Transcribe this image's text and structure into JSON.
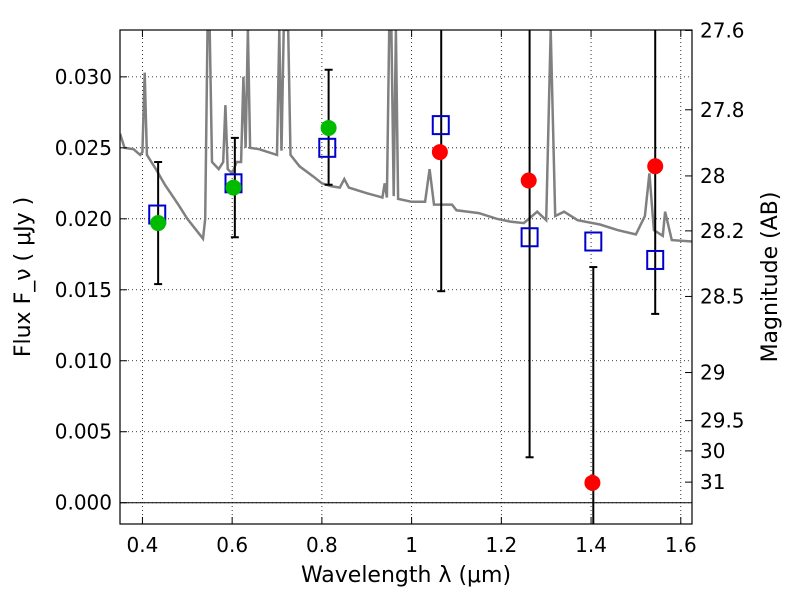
{
  "chart_data": {
    "type": "scatter",
    "title": "",
    "xlabel": "Wavelength  λ (μm)",
    "ylabel": "Flux  F_ν  ( μJy )",
    "ylabel_right": "Magnitude (AB)",
    "xlim": [
      0.35,
      1.625
    ],
    "ylim": [
      -0.0015,
      0.0333
    ],
    "grid": true,
    "x_ticks": [
      0.4,
      0.6,
      0.8,
      1.0,
      1.2,
      1.4,
      1.6
    ],
    "x_tick_labels": [
      "0.4",
      "0.6",
      "0.8",
      "1",
      "1.2",
      "1.4",
      "1.6"
    ],
    "y_ticks": [
      0.0,
      0.005,
      0.01,
      0.015,
      0.02,
      0.025,
      0.03
    ],
    "y_tick_labels": [
      "0.000",
      "0.005",
      "0.010",
      "0.015",
      "0.020",
      "0.025",
      "0.030"
    ],
    "right_ticks": [
      {
        "label": "27.6",
        "flux": 0.03327
      },
      {
        "label": "27.8",
        "flux": 0.02768
      },
      {
        "label": "28",
        "flux": 0.02302
      },
      {
        "label": "28.2",
        "flux": 0.01915
      },
      {
        "label": "28.5",
        "flux": 0.01453
      },
      {
        "label": "29",
        "flux": 0.00917
      },
      {
        "label": "29.5",
        "flux": 0.00578
      },
      {
        "label": "30",
        "flux": 0.00365
      },
      {
        "label": "31",
        "flux": 0.00145
      }
    ],
    "colors": {
      "model_line": "#808080",
      "green_points": "#00bb00",
      "red_points": "#ff0000",
      "squares": "#0000cc",
      "error_bars": "#000000",
      "zero_line": "#000000"
    },
    "series": [
      {
        "marker": "circle-green",
        "points": [
          {
            "x": 0.435,
            "y": 0.0197
          },
          {
            "x": 0.603,
            "y": 0.0222
          },
          {
            "x": 0.815,
            "y": 0.0264
          }
        ]
      },
      {
        "marker": "circle-red",
        "points": [
          {
            "x": 1.063,
            "y": 0.0247
          },
          {
            "x": 1.261,
            "y": 0.0227
          },
          {
            "x": 1.403,
            "y": 0.0014
          },
          {
            "x": 1.543,
            "y": 0.0237
          }
        ]
      },
      {
        "marker": "errorbar",
        "points": [
          {
            "x": 0.435,
            "lo": 0.0154,
            "hi": 0.024
          },
          {
            "x": 0.606,
            "lo": 0.0187,
            "hi": 0.0257
          },
          {
            "x": 0.815,
            "lo": 0.0224,
            "hi": 0.0305
          },
          {
            "x": 1.066,
            "lo": 0.0149,
            "hi": 0.0333
          },
          {
            "x": 1.263,
            "lo": 0.0032,
            "hi": 0.0333
          },
          {
            "x": 1.405,
            "lo": -0.0015,
            "hi": 0.0166
          },
          {
            "x": 1.543,
            "lo": 0.0133,
            "hi": 0.0333
          }
        ]
      },
      {
        "marker": "square-open",
        "points": [
          {
            "x": 0.433,
            "y": 0.0203
          },
          {
            "x": 0.603,
            "y": 0.0225
          },
          {
            "x": 0.812,
            "y": 0.025
          },
          {
            "x": 1.065,
            "y": 0.0266
          },
          {
            "x": 1.263,
            "y": 0.0187
          },
          {
            "x": 1.405,
            "y": 0.0184
          },
          {
            "x": 1.543,
            "y": 0.0171
          }
        ]
      },
      {
        "marker": "line-model",
        "points": [
          {
            "x": 0.35,
            "y": 0.026
          },
          {
            "x": 0.36,
            "y": 0.025
          },
          {
            "x": 0.38,
            "y": 0.0249
          },
          {
            "x": 0.395,
            "y": 0.0245
          },
          {
            "x": 0.4,
            "y": 0.0247
          },
          {
            "x": 0.405,
            "y": 0.0303
          },
          {
            "x": 0.41,
            "y": 0.0245
          },
          {
            "x": 0.43,
            "y": 0.0235
          },
          {
            "x": 0.45,
            "y": 0.0224
          },
          {
            "x": 0.48,
            "y": 0.021
          },
          {
            "x": 0.5,
            "y": 0.02
          },
          {
            "x": 0.52,
            "y": 0.0192
          },
          {
            "x": 0.535,
            "y": 0.0186
          },
          {
            "x": 0.54,
            "y": 0.02
          },
          {
            "x": 0.545,
            "y": 0.0333
          },
          {
            "x": 0.55,
            "y": 0.0333
          },
          {
            "x": 0.555,
            "y": 0.024
          },
          {
            "x": 0.57,
            "y": 0.0235
          },
          {
            "x": 0.58,
            "y": 0.024
          },
          {
            "x": 0.585,
            "y": 0.028
          },
          {
            "x": 0.59,
            "y": 0.0235
          },
          {
            "x": 0.6,
            "y": 0.0232
          },
          {
            "x": 0.61,
            "y": 0.024
          },
          {
            "x": 0.62,
            "y": 0.024
          },
          {
            "x": 0.625,
            "y": 0.03
          },
          {
            "x": 0.63,
            "y": 0.025
          },
          {
            "x": 0.635,
            "y": 0.0333
          },
          {
            "x": 0.64,
            "y": 0.025
          },
          {
            "x": 0.66,
            "y": 0.0249
          },
          {
            "x": 0.7,
            "y": 0.0245
          },
          {
            "x": 0.705,
            "y": 0.0333
          },
          {
            "x": 0.71,
            "y": 0.0248
          },
          {
            "x": 0.715,
            "y": 0.0333
          },
          {
            "x": 0.72,
            "y": 0.0333
          },
          {
            "x": 0.725,
            "y": 0.0333
          },
          {
            "x": 0.73,
            "y": 0.0245
          },
          {
            "x": 0.75,
            "y": 0.0237
          },
          {
            "x": 0.78,
            "y": 0.023
          },
          {
            "x": 0.8,
            "y": 0.0225
          },
          {
            "x": 0.82,
            "y": 0.0223
          },
          {
            "x": 0.84,
            "y": 0.0222
          },
          {
            "x": 0.85,
            "y": 0.0228
          },
          {
            "x": 0.86,
            "y": 0.0222
          },
          {
            "x": 0.9,
            "y": 0.0218
          },
          {
            "x": 0.935,
            "y": 0.0215
          },
          {
            "x": 0.94,
            "y": 0.0225
          },
          {
            "x": 0.945,
            "y": 0.0215
          },
          {
            "x": 0.95,
            "y": 0.0333
          },
          {
            "x": 0.955,
            "y": 0.0333
          },
          {
            "x": 0.96,
            "y": 0.0216
          },
          {
            "x": 0.965,
            "y": 0.0333
          },
          {
            "x": 0.97,
            "y": 0.0214
          },
          {
            "x": 1.0,
            "y": 0.0212
          },
          {
            "x": 1.03,
            "y": 0.0212
          },
          {
            "x": 1.04,
            "y": 0.0235
          },
          {
            "x": 1.05,
            "y": 0.021
          },
          {
            "x": 1.09,
            "y": 0.021
          },
          {
            "x": 1.1,
            "y": 0.0206
          },
          {
            "x": 1.15,
            "y": 0.0204
          },
          {
            "x": 1.19,
            "y": 0.02
          },
          {
            "x": 1.22,
            "y": 0.0198
          },
          {
            "x": 1.25,
            "y": 0.0197
          },
          {
            "x": 1.28,
            "y": 0.0205
          },
          {
            "x": 1.3,
            "y": 0.0199
          },
          {
            "x": 1.31,
            "y": 0.0333
          },
          {
            "x": 1.32,
            "y": 0.0202
          },
          {
            "x": 1.34,
            "y": 0.0205
          },
          {
            "x": 1.37,
            "y": 0.0199
          },
          {
            "x": 1.42,
            "y": 0.0196
          },
          {
            "x": 1.46,
            "y": 0.0192
          },
          {
            "x": 1.5,
            "y": 0.0189
          },
          {
            "x": 1.52,
            "y": 0.0202
          },
          {
            "x": 1.53,
            "y": 0.0232
          },
          {
            "x": 1.54,
            "y": 0.0192
          },
          {
            "x": 1.56,
            "y": 0.0188
          },
          {
            "x": 1.565,
            "y": 0.0205
          },
          {
            "x": 1.58,
            "y": 0.0185
          },
          {
            "x": 1.625,
            "y": 0.0184
          }
        ]
      }
    ]
  }
}
